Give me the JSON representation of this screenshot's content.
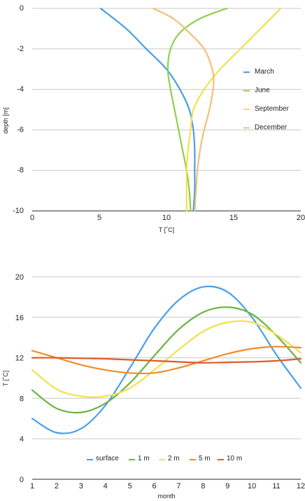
{
  "chart_data": [
    {
      "type": "line",
      "xlabel": "T [˚C]",
      "ylabel": "depth [m]",
      "xlim": [
        0,
        20
      ],
      "ylim": [
        -10,
        0
      ],
      "xticks": [
        "0",
        "5",
        "10",
        "15",
        "20"
      ],
      "yticks": [
        "0",
        "-2",
        "-4",
        "-6",
        "-8",
        "-10"
      ],
      "grid": "horizontal",
      "legend_position": "right",
      "series": [
        {
          "name": "March",
          "color": "#4a9fe6",
          "points": [
            [
              5.1,
              0
            ],
            [
              7.0,
              -1
            ],
            [
              8.5,
              -2
            ],
            [
              10.0,
              -3
            ],
            [
              11.0,
              -4
            ],
            [
              11.7,
              -5
            ],
            [
              12.0,
              -6
            ],
            [
              12.1,
              -7
            ],
            [
              12.1,
              -8
            ],
            [
              12.1,
              -9
            ],
            [
              12.0,
              -10
            ]
          ]
        },
        {
          "name": "June",
          "color": "#8ed14e",
          "points": [
            [
              14.5,
              0
            ],
            [
              12.5,
              -0.5
            ],
            [
              11.0,
              -1.2
            ],
            [
              10.3,
              -2
            ],
            [
              10.1,
              -3
            ],
            [
              10.3,
              -4
            ],
            [
              10.6,
              -5
            ],
            [
              10.9,
              -6
            ],
            [
              11.2,
              -7
            ],
            [
              11.5,
              -8
            ],
            [
              11.7,
              -9
            ],
            [
              11.8,
              -10
            ]
          ]
        },
        {
          "name": "September",
          "color": "#f4e04d",
          "points": [
            [
              18.5,
              0
            ],
            [
              17.0,
              -1
            ],
            [
              15.5,
              -2
            ],
            [
              14.0,
              -3
            ],
            [
              12.8,
              -4
            ],
            [
              12.0,
              -5
            ],
            [
              11.8,
              -6
            ],
            [
              11.6,
              -7
            ],
            [
              11.5,
              -8
            ],
            [
              11.5,
              -9
            ],
            [
              11.5,
              -10
            ]
          ]
        },
        {
          "name": "December",
          "color": "#f2c07a",
          "points": [
            [
              9.0,
              0
            ],
            [
              10.5,
              -0.5
            ],
            [
              11.7,
              -1.2
            ],
            [
              12.8,
              -2
            ],
            [
              13.4,
              -3
            ],
            [
              13.5,
              -3.8
            ],
            [
              13.2,
              -5
            ],
            [
              12.8,
              -6
            ],
            [
              12.5,
              -7
            ],
            [
              12.3,
              -8
            ],
            [
              12.2,
              -9
            ],
            [
              12.1,
              -10
            ]
          ]
        }
      ]
    },
    {
      "type": "line",
      "xlabel": "month",
      "ylabel": "T [˚C]",
      "xlim": [
        1,
        12
      ],
      "ylim": [
        0,
        20
      ],
      "xticks": [
        "1",
        "2",
        "3",
        "4",
        "5",
        "6",
        "7",
        "8",
        "9",
        "10",
        "11",
        "12"
      ],
      "yticks": [
        "0",
        "4",
        "8",
        "12",
        "16",
        "20"
      ],
      "grid": "horizontal",
      "legend_position": "bottom",
      "series": [
        {
          "name": "surface",
          "color": "#4a9fe6",
          "points": [
            [
              1,
              6.0
            ],
            [
              2,
              4.6
            ],
            [
              3,
              5.0
            ],
            [
              4,
              7.3
            ],
            [
              5,
              11.0
            ],
            [
              6,
              14.9
            ],
            [
              7,
              17.7
            ],
            [
              8,
              19.0
            ],
            [
              9,
              18.5
            ],
            [
              10,
              16.0
            ],
            [
              11,
              12.3
            ],
            [
              12,
              9.0
            ]
          ]
        },
        {
          "name": "1 m",
          "color": "#6db33f",
          "points": [
            [
              1,
              8.8
            ],
            [
              2,
              7.0
            ],
            [
              3,
              6.6
            ],
            [
              4,
              7.5
            ],
            [
              5,
              9.5
            ],
            [
              6,
              12.2
            ],
            [
              7,
              14.8
            ],
            [
              8,
              16.5
            ],
            [
              9,
              17.0
            ],
            [
              10,
              16.3
            ],
            [
              11,
              14.2
            ],
            [
              12,
              11.5
            ]
          ]
        },
        {
          "name": "2 m",
          "color": "#f4e04d",
          "points": [
            [
              1,
              10.8
            ],
            [
              2,
              8.9
            ],
            [
              3,
              8.2
            ],
            [
              4,
              8.2
            ],
            [
              5,
              9.0
            ],
            [
              6,
              10.8
            ],
            [
              7,
              12.8
            ],
            [
              8,
              14.6
            ],
            [
              9,
              15.5
            ],
            [
              10,
              15.5
            ],
            [
              11,
              14.3
            ],
            [
              12,
              12.5
            ]
          ]
        },
        {
          "name": "5 m",
          "color": "#f08c2a",
          "points": [
            [
              1,
              12.7
            ],
            [
              2,
              12.0
            ],
            [
              3,
              11.3
            ],
            [
              4,
              10.8
            ],
            [
              5,
              10.5
            ],
            [
              6,
              10.5
            ],
            [
              7,
              11.0
            ],
            [
              8,
              11.7
            ],
            [
              9,
              12.4
            ],
            [
              10,
              12.9
            ],
            [
              11,
              13.1
            ],
            [
              12,
              13.0
            ]
          ]
        },
        {
          "name": "10 m",
          "color": "#e05a28",
          "points": [
            [
              1,
              12.0
            ],
            [
              2,
              12.0
            ],
            [
              3,
              11.95
            ],
            [
              4,
              11.9
            ],
            [
              5,
              11.8
            ],
            [
              6,
              11.7
            ],
            [
              7,
              11.6
            ],
            [
              8,
              11.5
            ],
            [
              9,
              11.55
            ],
            [
              10,
              11.6
            ],
            [
              11,
              11.7
            ],
            [
              12,
              11.9
            ]
          ]
        }
      ]
    }
  ]
}
